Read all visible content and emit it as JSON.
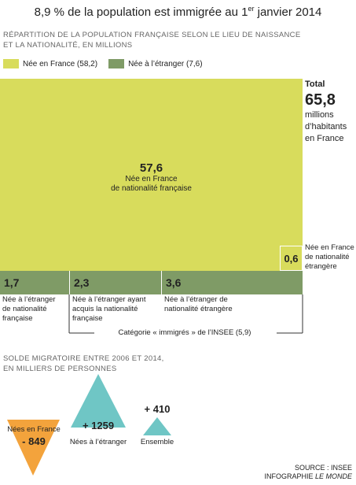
{
  "title_main": "8,9 % de la population est immigrée au 1",
  "title_sup": "er",
  "title_end": " janvier 2014",
  "subtitle_line1": "Répartition de la population française selon le lieu de naissance",
  "subtitle_line2": "et la nationalité, en millions",
  "legend": [
    {
      "label": "Née en France (58,2)",
      "color": "#d8dc5c"
    },
    {
      "label": "Née à l’étranger (7,6)",
      "color": "#7f9b66"
    }
  ],
  "total": {
    "heading": "Total",
    "value": "65,8",
    "unit_line1": "millions",
    "unit_line2": "d’habitants",
    "unit_line3": "en France"
  },
  "center": {
    "value": "57,6",
    "line1": "Née en France",
    "line2": "de nationalité française"
  },
  "small": {
    "value": "0,6",
    "line1": "Née en France",
    "line2": "de nationalité",
    "line3": "étrangère"
  },
  "strips": [
    {
      "value": "1,7",
      "line1": "Née à l’étranger",
      "line2": "de nationalité",
      "line3": "française"
    },
    {
      "value": "2,3",
      "line1": "Née à l’étranger ayant",
      "line2": "acquis la nationalité",
      "line3": "française"
    },
    {
      "value": "3,6",
      "line1": "Née à l’étranger de",
      "line2": "nationalité étrangère",
      "line3": ""
    }
  ],
  "category_label": "Catégorie « immigrés » de l’INSEE (5,9)",
  "section2_line1": "Solde migratoire entre 2006 et 2014,",
  "section2_line2": "en milliers de personnes",
  "triangles": [
    {
      "label": "Nées en France",
      "value": "- 849",
      "color": "#f3a33c"
    },
    {
      "label": "Nées à l’étranger",
      "value": "+ 1259",
      "color": "#6fc6c5"
    },
    {
      "label": "Ensemble",
      "value": "+ 410",
      "color": "#6fc6c5"
    }
  ],
  "source_line1": "SOURCE : INSEE",
  "source_line2_a": "INFOGRAPHIE ",
  "source_line2_b": "LE MONDE",
  "chart_data": {
    "type": "table",
    "population_millions": [
      {
        "category": "Née en France de nationalité française",
        "value": 57.6
      },
      {
        "category": "Née en France de nationalité étrangère",
        "value": 0.6
      },
      {
        "category": "Née à l’étranger de nationalité française",
        "value": 1.7
      },
      {
        "category": "Née à l’étranger ayant acquis la nationalité française",
        "value": 2.3
      },
      {
        "category": "Née à l’étranger de nationalité étrangère",
        "value": 3.6
      }
    ],
    "totals": {
      "Née en France": 58.2,
      "Née à l’étranger": 7.6,
      "Total": 65.8,
      "Catégorie immigrés": 5.9
    },
    "migration_balance_thousands": [
      {
        "category": "Nées en France",
        "value": -849
      },
      {
        "category": "Nées à l’étranger",
        "value": 1259
      },
      {
        "category": "Ensemble",
        "value": 410
      }
    ]
  }
}
